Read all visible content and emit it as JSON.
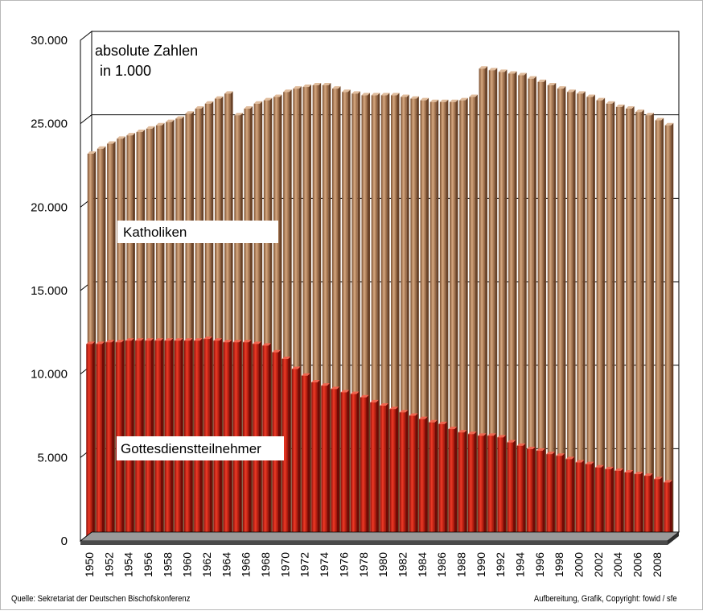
{
  "footer": {
    "source": "Quelle: Sekretariat der Deutschen Bischofskonferenz",
    "copyright": "Aufbereitung, Grafik, Copyright: fowid / sfe"
  },
  "chart_data": {
    "type": "bar",
    "title": "absolute Zahlen",
    "subtitle": "in 1.000",
    "x": [
      1950,
      1951,
      1952,
      1953,
      1954,
      1955,
      1956,
      1957,
      1958,
      1959,
      1960,
      1961,
      1962,
      1963,
      1964,
      1965,
      1966,
      1967,
      1968,
      1969,
      1970,
      1971,
      1972,
      1973,
      1974,
      1975,
      1976,
      1977,
      1978,
      1979,
      1980,
      1981,
      1982,
      1983,
      1984,
      1985,
      1986,
      1987,
      1988,
      1989,
      1990,
      1991,
      1992,
      1993,
      1994,
      1995,
      1996,
      1997,
      1998,
      1999,
      2000,
      2001,
      2002,
      2003,
      2004,
      2005,
      2006,
      2007,
      2008,
      2009
    ],
    "x_tick_labels": [
      "1950",
      "1952",
      "1954",
      "1956",
      "1958",
      "1960",
      "1962",
      "1964",
      "1966",
      "1968",
      "1970",
      "1972",
      "1974",
      "1976",
      "1978",
      "1980",
      "1982",
      "1984",
      "1986",
      "1988",
      "1990",
      "1992",
      "1994",
      "1996",
      "1998",
      "2000",
      "2002",
      "2004",
      "2006",
      "2008"
    ],
    "y_tick_labels": [
      "0",
      "5.000",
      "10.000",
      "15.000",
      "20.000",
      "25.000",
      "30.000"
    ],
    "ylim": [
      0,
      30000
    ],
    "grid": true,
    "series": [
      {
        "name": "Katholiken",
        "color": "#a87a56",
        "values": [
          23200,
          23500,
          23800,
          24100,
          24300,
          24500,
          24700,
          24900,
          25100,
          25300,
          25600,
          25900,
          26200,
          26500,
          26800,
          25500,
          25900,
          26200,
          26400,
          26600,
          26900,
          27100,
          27200,
          27300,
          27300,
          27100,
          26900,
          26800,
          26700,
          26700,
          26700,
          26700,
          26600,
          26500,
          26400,
          26300,
          26300,
          26300,
          26400,
          26600,
          28300,
          28200,
          28100,
          28000,
          27900,
          27700,
          27500,
          27300,
          27100,
          26900,
          26800,
          26600,
          26400,
          26200,
          26000,
          25900,
          25700,
          25500,
          25200,
          24900
        ]
      },
      {
        "name": "Gottesdienstteilnehmer",
        "color": "#cc1e12",
        "values": [
          11800,
          11800,
          11900,
          11900,
          12000,
          12000,
          12000,
          12000,
          12000,
          12000,
          12000,
          12000,
          12100,
          12000,
          11900,
          11900,
          11900,
          11800,
          11700,
          11300,
          10900,
          10300,
          9900,
          9500,
          9300,
          9100,
          8900,
          8800,
          8600,
          8300,
          8100,
          7900,
          7700,
          7500,
          7300,
          7100,
          7000,
          6700,
          6500,
          6400,
          6300,
          6300,
          6200,
          5900,
          5700,
          5500,
          5400,
          5200,
          5100,
          4900,
          4700,
          4600,
          4400,
          4300,
          4200,
          4100,
          4000,
          3900,
          3700,
          3500
        ]
      }
    ]
  }
}
